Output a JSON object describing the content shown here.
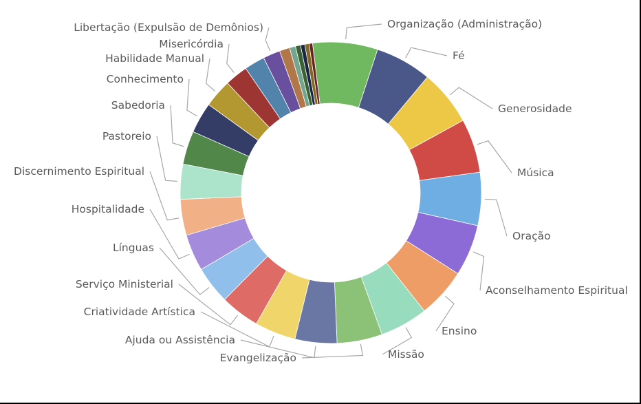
{
  "chart_data": {
    "type": "pie",
    "variant": "donut",
    "legend": "none",
    "slices": [
      {
        "label": "Organização (Administração)",
        "value": 7.6,
        "color": "#71b961"
      },
      {
        "label": "Fé",
        "value": 6.6,
        "color": "#4a5889"
      },
      {
        "label": "Generosidade",
        "value": 6.5,
        "color": "#ecc846"
      },
      {
        "label": "Música",
        "value": 6.3,
        "color": "#d14b46"
      },
      {
        "label": "Oração",
        "value": 6.2,
        "color": "#6eaee2"
      },
      {
        "label": "Aconselhamento Espiritual",
        "value": 6.0,
        "color": "#8c6bd6"
      },
      {
        "label": "Ensino",
        "value": 5.8,
        "color": "#ee9d66"
      },
      {
        "label": "Missão",
        "value": 5.6,
        "color": "#97dcbd"
      },
      {
        "label": "Evangelização",
        "value": 5.3,
        "color": "#8cc277"
      },
      {
        "label": "Ajuda ou Assistência",
        "value": 4.9,
        "color": "#6a76a3"
      },
      {
        "label": "Criatividade Artística",
        "value": 4.8,
        "color": "#f0d56a"
      },
      {
        "label": "Serviço Ministerial",
        "value": 4.6,
        "color": "#de6b66"
      },
      {
        "label": "Línguas",
        "value": 4.4,
        "color": "#8fbfea"
      },
      {
        "label": "Hospitalidade",
        "value": 4.3,
        "color": "#a48bdc"
      },
      {
        "label": "Discernimento Espiritual",
        "value": 4.2,
        "color": "#f1b085"
      },
      {
        "label": "Pastoreio",
        "value": 4.1,
        "color": "#abe3cb"
      },
      {
        "label": "Sabedoria",
        "value": 3.9,
        "color": "#51884a"
      },
      {
        "label": "Conhecimento",
        "value": 3.6,
        "color": "#333d66"
      },
      {
        "label": "Habilidade Manual",
        "value": 3.3,
        "color": "#b39731"
      },
      {
        "label": "Misericórdia",
        "value": 2.7,
        "color": "#9d3533"
      },
      {
        "label": "",
        "value": 2.4,
        "color": "#5283ab"
      },
      {
        "label": "Libertação (Expulsão de Demônios)",
        "value": 2.0,
        "color": "#68509e"
      },
      {
        "label": "",
        "value": 1.2,
        "color": "#b17749"
      },
      {
        "label": "",
        "value": 0.7,
        "color": "#73a58f"
      },
      {
        "label": "",
        "value": 0.6,
        "color": "#3a6235"
      },
      {
        "label": "",
        "value": 0.5,
        "color": "#1b2545"
      },
      {
        "label": "",
        "value": 0.5,
        "color": "#806920"
      },
      {
        "label": "",
        "value": 0.4,
        "color": "#6c2224"
      }
    ]
  }
}
